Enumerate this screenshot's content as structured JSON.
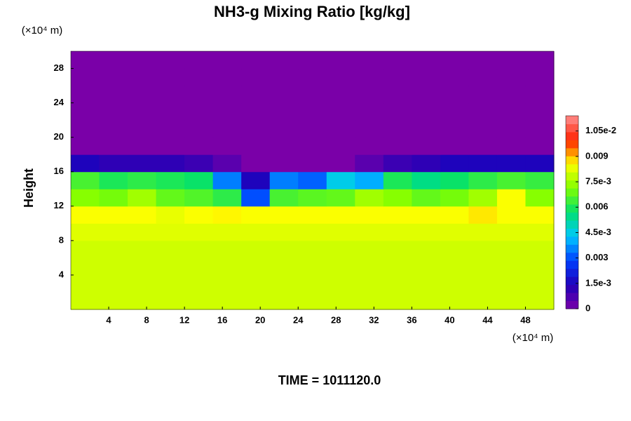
{
  "chart_data": {
    "type": "heatmap",
    "title": "NH3-g Mixing Ratio [kg/kg]",
    "y_label": "Height",
    "x_unit": "(×10⁴ m)",
    "y_unit": "(×10⁴ m)",
    "footer": "TIME = 1011120.0",
    "xlim": [
      0,
      51
    ],
    "ylim": [
      0,
      30
    ],
    "xticks": [
      4,
      8,
      12,
      16,
      20,
      24,
      28,
      32,
      36,
      40,
      44,
      48
    ],
    "yticks": [
      4,
      8,
      12,
      16,
      20,
      24,
      28
    ],
    "clim": [
      0,
      0.0114
    ],
    "cticks": [
      0,
      {
        "value": 0.0015,
        "label": "1.5e-3"
      },
      0.003,
      {
        "value": 0.0045,
        "label": "4.5e-3"
      },
      0.006,
      {
        "value": 0.0075,
        "label": "7.5e-3"
      },
      0.009,
      {
        "value": 0.0105,
        "label": "1.05e-2"
      }
    ],
    "colors": [
      "#7a00a8",
      "#2000b8",
      "#0040ff",
      "#00c8ff",
      "#00e070",
      "#80ff00",
      "#ffff00",
      "#ff2000",
      "#ff9090"
    ],
    "x": [
      1.5,
      4.5,
      7.5,
      10.5,
      13.5,
      16.5,
      19.5,
      22.5,
      25.5,
      28.5,
      31.5,
      34.5,
      37.5,
      40.5,
      43.5,
      46.5,
      49.5
    ],
    "y": [
      1,
      3,
      5,
      7,
      9,
      11,
      13,
      15,
      17,
      19,
      21,
      23,
      25,
      27,
      29
    ],
    "z": [
      [
        0.008,
        0.008,
        0.008,
        0.008,
        0.008,
        0.008,
        0.008,
        0.008,
        0.008,
        0.008,
        0.008,
        0.008,
        0.008,
        0.008,
        0.008,
        0.008,
        0.008
      ],
      [
        0.008,
        0.008,
        0.008,
        0.008,
        0.008,
        0.008,
        0.008,
        0.008,
        0.008,
        0.008,
        0.008,
        0.008,
        0.008,
        0.008,
        0.008,
        0.008,
        0.008
      ],
      [
        0.008,
        0.008,
        0.008,
        0.008,
        0.008,
        0.008,
        0.008,
        0.008,
        0.008,
        0.008,
        0.008,
        0.008,
        0.008,
        0.008,
        0.008,
        0.008,
        0.008
      ],
      [
        0.008,
        0.008,
        0.008,
        0.008,
        0.008,
        0.008,
        0.008,
        0.008,
        0.008,
        0.008,
        0.008,
        0.008,
        0.008,
        0.008,
        0.008,
        0.008,
        0.008
      ],
      [
        0.0082,
        0.0082,
        0.0082,
        0.0082,
        0.0082,
        0.0082,
        0.0082,
        0.0082,
        0.0082,
        0.0082,
        0.0082,
        0.0082,
        0.0082,
        0.0082,
        0.0082,
        0.0082,
        0.0082
      ],
      [
        0.0085,
        0.0085,
        0.0085,
        0.0083,
        0.0085,
        0.0086,
        0.0085,
        0.0085,
        0.0085,
        0.0085,
        0.0085,
        0.0085,
        0.0085,
        0.0085,
        0.0087,
        0.0085,
        0.0085
      ],
      [
        0.0072,
        0.007,
        0.0075,
        0.0068,
        0.0066,
        0.0062,
        0.003,
        0.0065,
        0.0067,
        0.0068,
        0.0075,
        0.0072,
        0.0068,
        0.007,
        0.0075,
        0.0085,
        0.0072
      ],
      [
        0.0065,
        0.006,
        0.0062,
        0.006,
        0.0058,
        0.0035,
        0.0015,
        0.0035,
        0.0032,
        0.0045,
        0.004,
        0.006,
        0.0055,
        0.0058,
        0.0062,
        0.0065,
        0.0063
      ],
      [
        0.0015,
        0.0012,
        0.0012,
        0.0012,
        0.001,
        0.0005,
        0,
        0,
        0,
        0,
        0.0005,
        0.001,
        0.0012,
        0.0015,
        0.0015,
        0.0015,
        0.0015
      ],
      [
        0,
        0,
        0,
        0,
        0,
        0,
        0,
        0,
        0,
        0,
        0,
        0,
        0,
        0,
        0,
        0,
        0
      ],
      [
        0,
        0,
        0,
        0,
        0,
        0,
        0,
        0,
        0,
        0,
        0,
        0,
        0,
        0,
        0,
        0,
        0
      ],
      [
        0,
        0,
        0,
        0,
        0,
        0,
        0,
        0,
        0,
        0,
        0,
        0,
        0,
        0,
        0,
        0,
        0
      ],
      [
        0,
        0,
        0,
        0,
        0,
        0,
        0,
        0,
        0,
        0,
        0,
        0,
        0,
        0,
        0,
        0,
        0
      ],
      [
        0,
        0,
        0,
        0,
        0,
        0,
        0,
        0,
        0,
        0,
        0,
        0,
        0,
        0,
        0,
        0,
        0
      ],
      [
        0,
        0,
        0,
        0,
        0,
        0,
        0,
        0,
        0,
        0,
        0,
        0,
        0,
        0,
        0,
        0,
        0
      ]
    ]
  }
}
